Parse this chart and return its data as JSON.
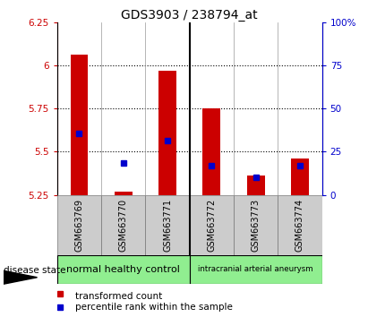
{
  "title": "GDS3903 / 238794_at",
  "samples": [
    "GSM663769",
    "GSM663770",
    "GSM663771",
    "GSM663772",
    "GSM663773",
    "GSM663774"
  ],
  "red_values": [
    6.06,
    5.27,
    5.97,
    5.75,
    5.36,
    5.46
  ],
  "blue_values": [
    5.605,
    5.435,
    5.565,
    5.42,
    5.35,
    5.42
  ],
  "baseline": 5.25,
  "ylim_left": [
    5.25,
    6.25
  ],
  "ylim_right": [
    0,
    100
  ],
  "yticks_left": [
    5.25,
    5.5,
    5.75,
    6.0,
    6.25
  ],
  "ytick_labels_left": [
    "5.25",
    "5.5",
    "5.75",
    "6",
    "6.25"
  ],
  "yticks_right": [
    0,
    25,
    50,
    75,
    100
  ],
  "ytick_labels_right": [
    "0",
    "25",
    "50",
    "75",
    "100%"
  ],
  "grid_lines": [
    5.5,
    5.75,
    6.0
  ],
  "group1_label": "normal healthy control",
  "group2_label": "intracranial arterial aneurysm",
  "group1_indices": [
    0,
    1,
    2
  ],
  "group2_indices": [
    3,
    4,
    5
  ],
  "group_split": 2.5,
  "disease_state_label": "disease state",
  "legend_red": "transformed count",
  "legend_blue": "percentile rank within the sample",
  "bar_color": "#cc0000",
  "blue_color": "#0000cc",
  "bar_width": 0.4,
  "blue_marker_size": 4,
  "group_color": "#90ee90",
  "sample_box_color": "#cccccc",
  "group_separator_color": "black",
  "plot_bg": "#ffffff"
}
